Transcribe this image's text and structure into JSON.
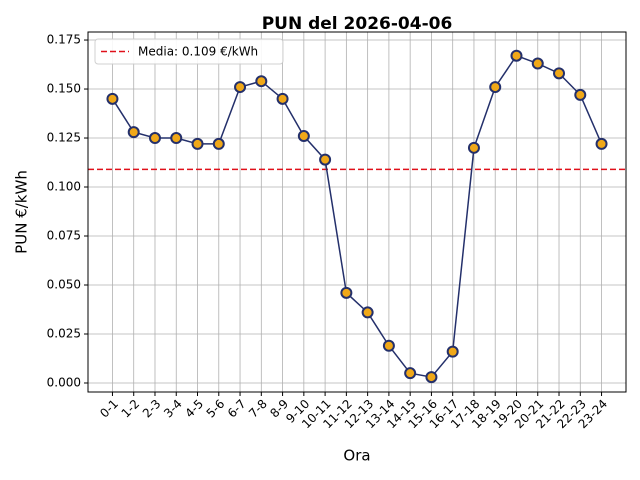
{
  "chart_data": {
    "type": "line",
    "title": "PUN del 2026-04-06",
    "x_label": "Ora",
    "y_label": "PUN €/kWh",
    "categories": [
      "0-1",
      "1-2",
      "2-3",
      "3-4",
      "4-5",
      "5-6",
      "6-7",
      "7-8",
      "8-9",
      "9-10",
      "10-11",
      "11-12",
      "12-13",
      "13-14",
      "14-15",
      "15-16",
      "16-17",
      "17-18",
      "18-19",
      "19-20",
      "20-21",
      "21-22",
      "22-23",
      "23-24"
    ],
    "series": [
      {
        "name": "PUN",
        "color": "#24306b",
        "marker_color": "#f0a818",
        "values": [
          0.145,
          0.128,
          0.125,
          0.125,
          0.122,
          0.122,
          0.151,
          0.154,
          0.145,
          0.126,
          0.114,
          0.046,
          0.036,
          0.019,
          0.005,
          0.003,
          0.016,
          0.12,
          0.151,
          0.167,
          0.163,
          0.158,
          0.147,
          0.122
        ]
      }
    ],
    "mean_line": {
      "value": 0.109,
      "label": "Media: 0.109 €/kWh",
      "color": "#e0101a"
    },
    "ylim": [
      -0.0046,
      0.1791
    ],
    "yticks": [
      {
        "value": 0,
        "label": "0.000"
      },
      0.025,
      {
        "value": 0.05,
        "label": "0.050"
      },
      0.075,
      {
        "value": 0.1,
        "label": "0.100"
      },
      0.125,
      {
        "value": 0.15,
        "label": "0.150"
      },
      0.175
    ],
    "grid": true,
    "legend": "upper left"
  }
}
